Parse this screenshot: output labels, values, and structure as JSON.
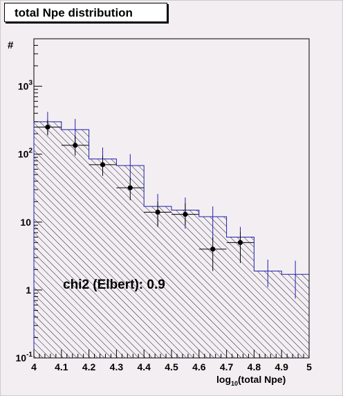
{
  "chart_data": {
    "type": "bar",
    "title": "total Npe distribution",
    "ylabel": "#",
    "xlabel": "log10(total Npe)",
    "xlabel_main": "log",
    "xlabel_sub": "10",
    "xlabel_rest": "(total Npe)",
    "annotation": "chi2 (Elbert): 0.9",
    "y_log_scale": true,
    "xlim": [
      4,
      5
    ],
    "ylim": [
      0.1,
      5000
    ],
    "x_ticks": [
      {
        "value": 4.0,
        "label": "4"
      },
      {
        "value": 4.1,
        "label": "4.1"
      },
      {
        "value": 4.2,
        "label": "4.2"
      },
      {
        "value": 4.3,
        "label": "4.3"
      },
      {
        "value": 4.4,
        "label": "4.4"
      },
      {
        "value": 4.5,
        "label": "4.5"
      },
      {
        "value": 4.6,
        "label": "4.6"
      },
      {
        "value": 4.7,
        "label": "4.7"
      },
      {
        "value": 4.8,
        "label": "4.8"
      },
      {
        "value": 4.9,
        "label": "4.9"
      },
      {
        "value": 5.0,
        "label": "5"
      }
    ],
    "y_ticks": [
      {
        "value": 0.1,
        "base": "10",
        "exp": "-1",
        "plain": ""
      },
      {
        "value": 1,
        "base": "",
        "exp": "",
        "plain": "1"
      },
      {
        "value": 10,
        "base": "",
        "exp": "",
        "plain": "10"
      },
      {
        "value": 100,
        "base": "10",
        "exp": "2",
        "plain": ""
      },
      {
        "value": 1000,
        "base": "10",
        "exp": "3",
        "plain": ""
      }
    ],
    "series": [
      {
        "style": "hatched-histogram",
        "color": "#1f1fb0",
        "bins": [
          {
            "x0": 4.0,
            "x1": 4.1,
            "value": 300,
            "err_low": 190,
            "err_high": 420
          },
          {
            "x0": 4.1,
            "x1": 4.2,
            "value": 230,
            "err_low": 135,
            "err_high": 330
          },
          {
            "x0": 4.2,
            "x1": 4.3,
            "value": 85,
            "err_low": 52,
            "err_high": 125
          },
          {
            "x0": 4.3,
            "x1": 4.4,
            "value": 68,
            "err_low": 40,
            "err_high": 100
          },
          {
            "x0": 4.4,
            "x1": 4.5,
            "value": 17,
            "err_low": 9,
            "err_high": 26
          },
          {
            "x0": 4.5,
            "x1": 4.6,
            "value": 15,
            "err_low": 8,
            "err_high": 23
          },
          {
            "x0": 4.6,
            "x1": 4.7,
            "value": 12,
            "err_low": 5.5,
            "err_high": 17
          },
          {
            "x0": 4.7,
            "x1": 4.8,
            "value": 6,
            "err_low": 3,
            "err_high": 8.5
          },
          {
            "x0": 4.8,
            "x1": 4.9,
            "value": 1.9,
            "err_low": 1.1,
            "err_high": 2.8
          },
          {
            "x0": 4.9,
            "x1": 5.0,
            "value": 1.7,
            "err_low": 0.75,
            "err_high": 2.7
          }
        ]
      },
      {
        "style": "points",
        "color": "#000000",
        "points": [
          {
            "x": 4.05,
            "y": 250,
            "err_low": 190,
            "err_high": 320
          },
          {
            "x": 4.15,
            "y": 135,
            "err_low": 95,
            "err_high": 185
          },
          {
            "x": 4.25,
            "y": 70,
            "err_low": 48,
            "err_high": 95
          },
          {
            "x": 4.35,
            "y": 32,
            "err_low": 21,
            "err_high": 45
          },
          {
            "x": 4.45,
            "y": 14,
            "err_low": 8.5,
            "err_high": 20
          },
          {
            "x": 4.55,
            "y": 13,
            "err_low": 9,
            "err_high": 19
          },
          {
            "x": 4.65,
            "y": 4,
            "err_low": 1.9,
            "err_high": 6
          },
          {
            "x": 4.75,
            "y": 5,
            "err_low": 2.5,
            "err_high": 7.2
          }
        ]
      }
    ]
  }
}
